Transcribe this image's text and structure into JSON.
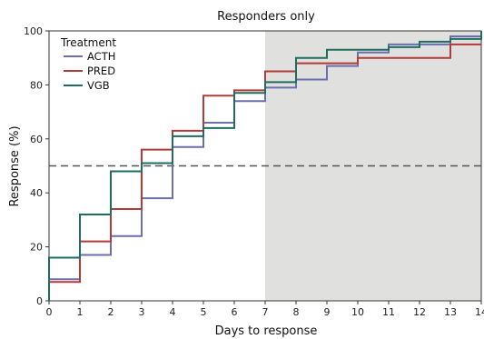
{
  "chart_data": {
    "type": "line",
    "step": true,
    "title": "Responders only",
    "xlabel": "Days to response",
    "ylabel": "Response (%)",
    "xlim": [
      0,
      14
    ],
    "ylim": [
      0,
      100
    ],
    "x_ticks": [
      0,
      1,
      2,
      3,
      4,
      5,
      6,
      7,
      8,
      9,
      10,
      11,
      12,
      13,
      14
    ],
    "y_ticks": [
      0,
      20,
      40,
      60,
      80,
      100
    ],
    "grid": false,
    "reference_line": {
      "y": 50,
      "style": "dashed",
      "color": "#555555"
    },
    "shaded_region": {
      "x_from": 7,
      "x_to": 14,
      "color": "#e0e0de"
    },
    "legend": {
      "title": "Treatment",
      "position": "top-left"
    },
    "series": [
      {
        "name": "ACTH",
        "color": "#6b6fb0",
        "x": [
          0,
          1,
          2,
          3,
          4,
          5,
          6,
          7,
          8,
          9,
          10,
          11,
          12,
          13,
          14
        ],
        "y": [
          8,
          17,
          24,
          38,
          57,
          66,
          74,
          79,
          82,
          87,
          92,
          95,
          95,
          98,
          99
        ]
      },
      {
        "name": "PRED",
        "color": "#b23a38",
        "x": [
          0,
          1,
          2,
          3,
          4,
          5,
          6,
          7,
          8,
          9,
          10,
          11,
          12,
          13,
          14
        ],
        "y": [
          7,
          22,
          34,
          56,
          63,
          76,
          78,
          85,
          88,
          88,
          90,
          90,
          90,
          95,
          95
        ]
      },
      {
        "name": "VGB",
        "color": "#1f6e5d",
        "x": [
          0,
          1,
          2,
          3,
          4,
          5,
          6,
          7,
          8,
          9,
          10,
          11,
          12,
          13,
          14
        ],
        "y": [
          16,
          32,
          48,
          51,
          61,
          64,
          77,
          81,
          90,
          93,
          93,
          94,
          96,
          97,
          100
        ]
      }
    ]
  }
}
